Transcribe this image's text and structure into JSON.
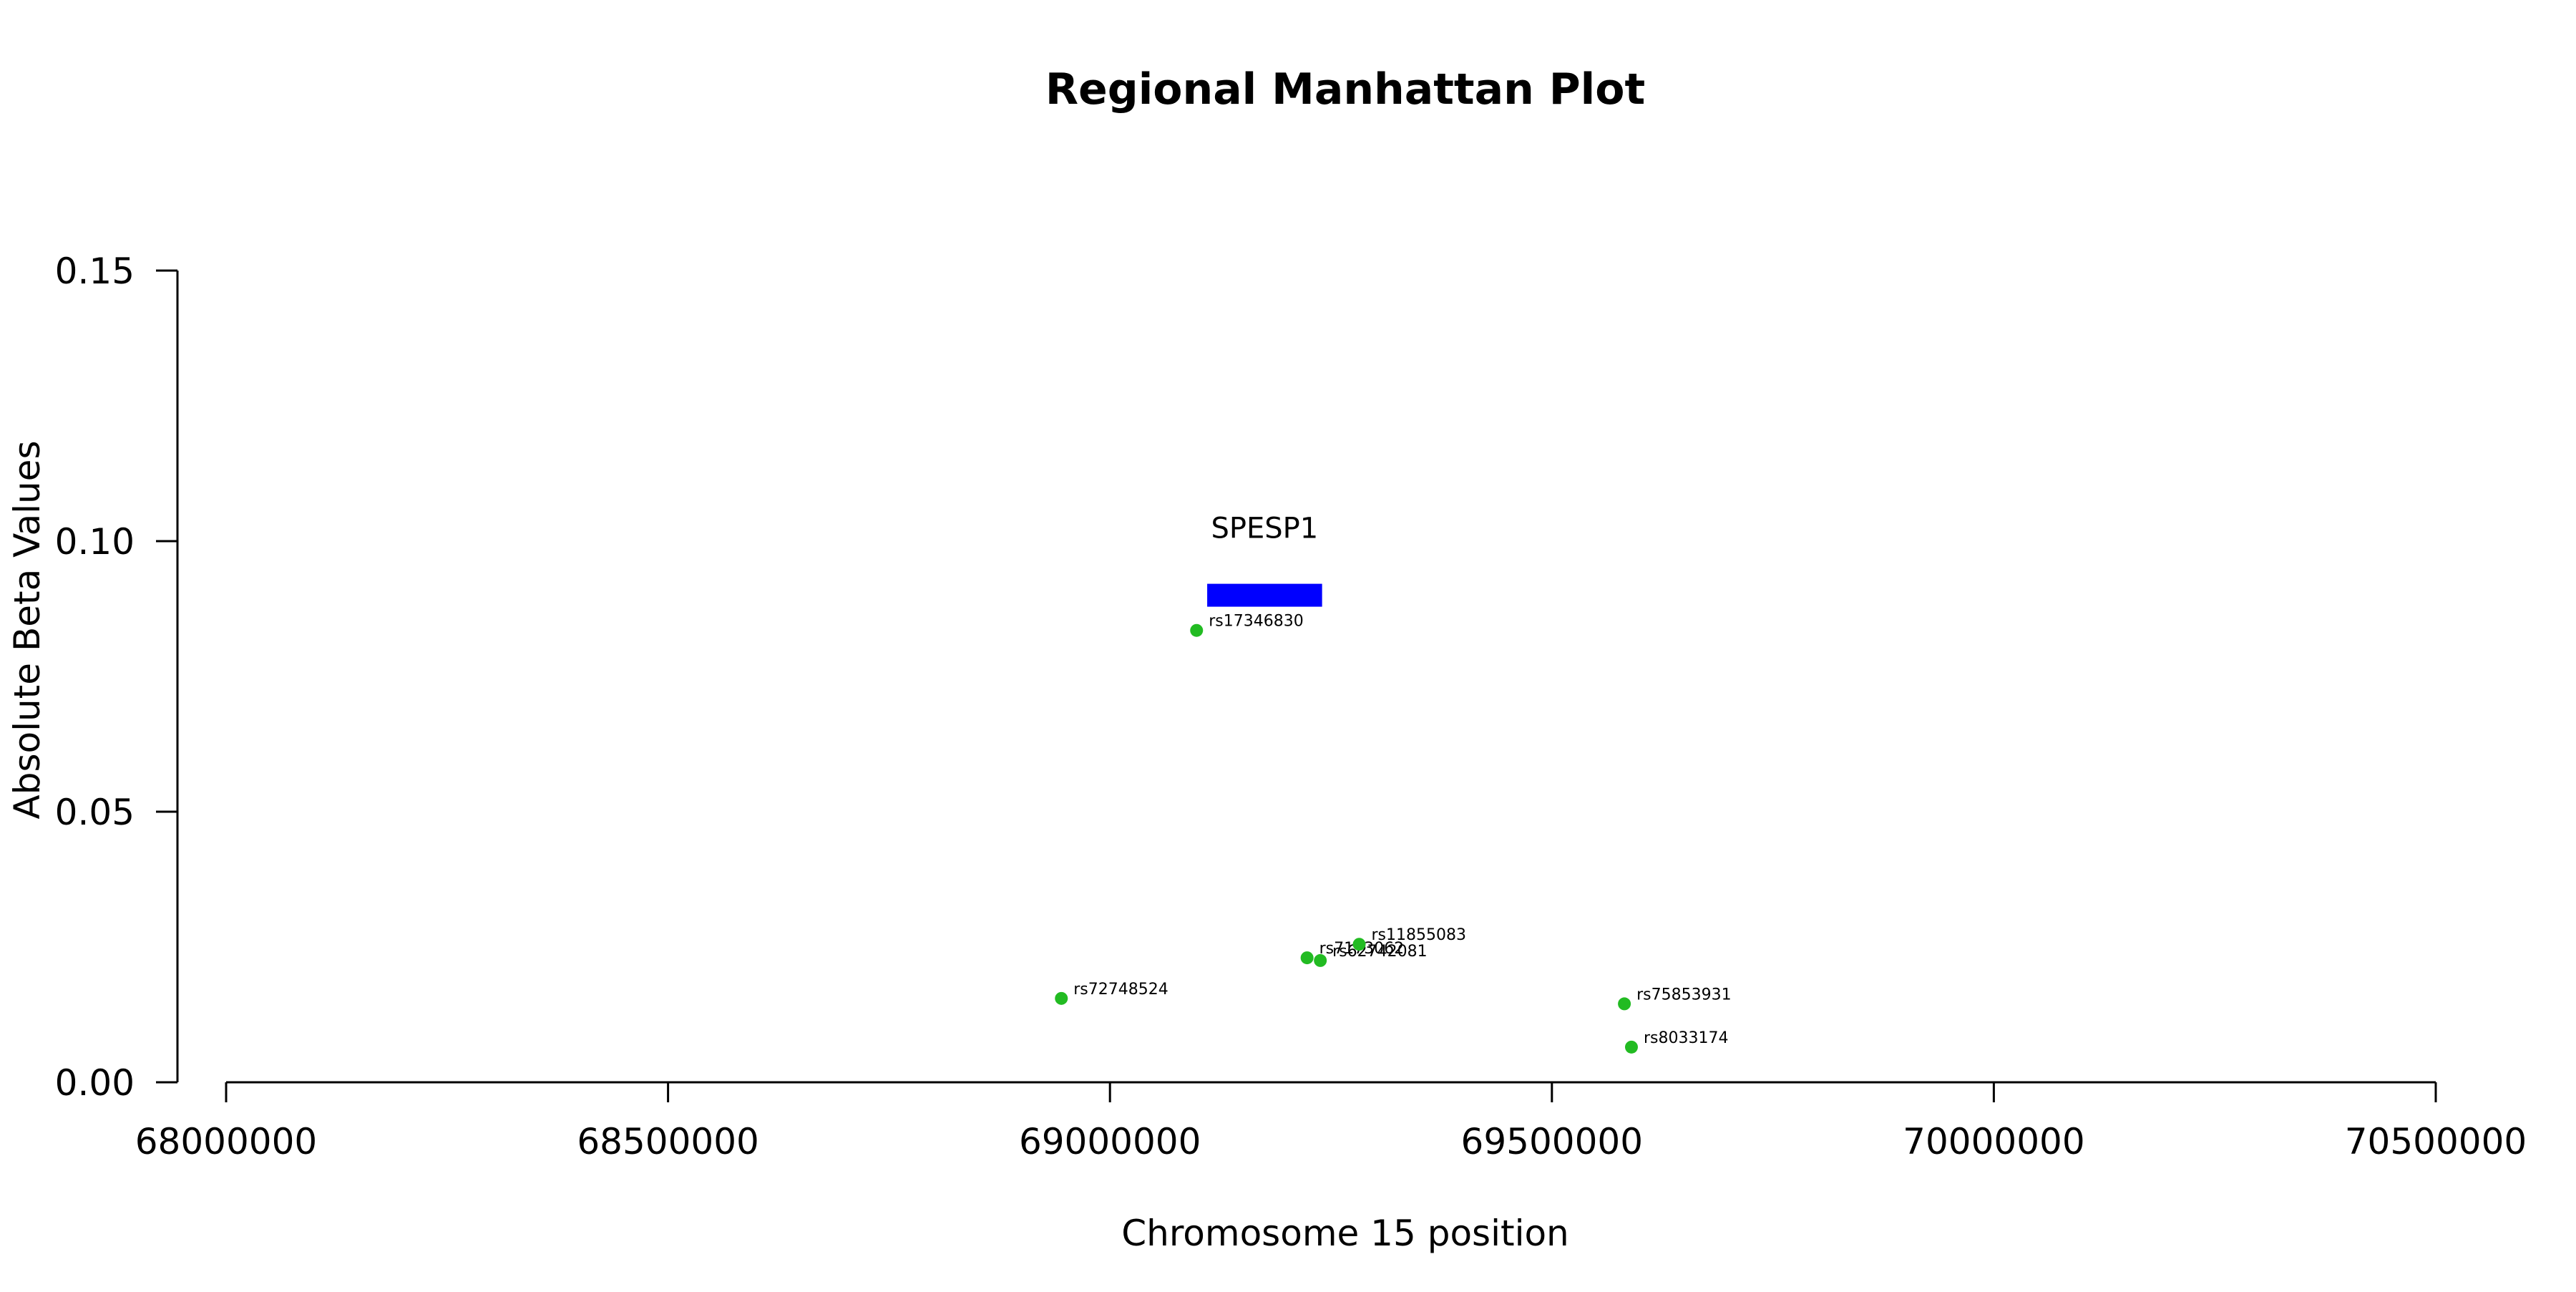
{
  "colors": {
    "points": "#22bb22",
    "gene": "#0000ff",
    "axis": "#000000"
  },
  "chart_data": {
    "type": "scatter",
    "title": "Regional Manhattan Plot",
    "xlabel": "Chromosome 15 position",
    "ylabel": "Absolute Beta Values",
    "xlim": [
      68000000,
      70500000
    ],
    "ylim": [
      0,
      0.15
    ],
    "x_ticks": [
      68000000,
      68500000,
      69000000,
      69500000,
      70000000,
      70500000
    ],
    "x_tick_labels": [
      "68000000",
      "68500000",
      "69000000",
      "69500000",
      "70000000",
      "70500000"
    ],
    "y_ticks": [
      0.0,
      0.05,
      0.1,
      0.15
    ],
    "y_tick_labels": [
      "0.00",
      "0.05",
      "0.10",
      "0.15"
    ],
    "grid": false,
    "points": [
      {
        "label": "rs72748524",
        "x": 68945000,
        "y": 0.0155
      },
      {
        "label": "rs17346830",
        "x": 69098000,
        "y": 0.0835
      },
      {
        "label": "rs7173062",
        "x": 69223000,
        "y": 0.023
      },
      {
        "label": "rs62742081",
        "x": 69238000,
        "y": 0.0225
      },
      {
        "label": "rs11855083",
        "x": 69282000,
        "y": 0.0255
      },
      {
        "label": "rs75853931",
        "x": 69582000,
        "y": 0.0145
      },
      {
        "label": "rs8033174",
        "x": 69590000,
        "y": 0.0065
      }
    ],
    "genes": [
      {
        "name": "SPESP1",
        "start": 69110000,
        "end": 69240000,
        "y": 0.09
      }
    ]
  }
}
